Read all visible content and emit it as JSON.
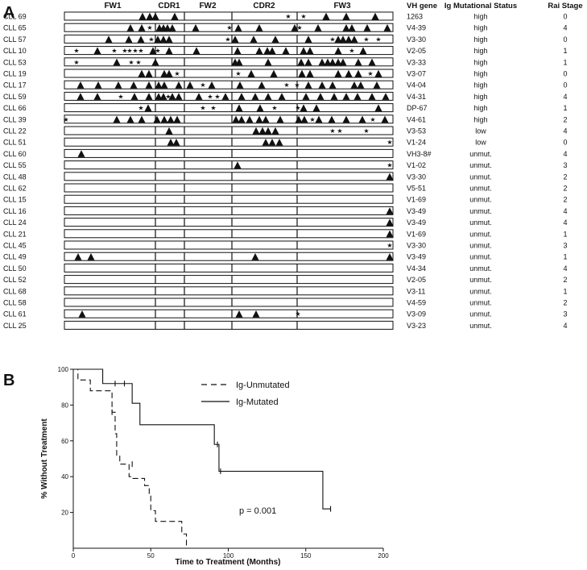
{
  "panel_a": {
    "letter": "A",
    "regions": [
      "FW1",
      "CDR1",
      "FW2",
      "CDR2",
      "FW3"
    ],
    "headers": {
      "vh_gene": "VH gene",
      "mutational_status": "Ig Mutational Status",
      "rai_stage": "Rai Stage"
    },
    "rows": [
      {
        "id": "CLL 69",
        "vh": "1263",
        "status": "high",
        "rai": "0"
      },
      {
        "id": "CLL 65",
        "vh": "V4-39",
        "status": "high",
        "rai": "4"
      },
      {
        "id": "CLL 57",
        "vh": "V3-30",
        "status": "high",
        "rai": "0"
      },
      {
        "id": "CLL 10",
        "vh": "V2-05",
        "status": "high",
        "rai": "1"
      },
      {
        "id": "CLL 53",
        "vh": "V3-33",
        "status": "high",
        "rai": "1"
      },
      {
        "id": "CLL 19",
        "vh": "V3-07",
        "status": "high",
        "rai": "0"
      },
      {
        "id": "CLL 17",
        "vh": "V4-04",
        "status": "high",
        "rai": "0"
      },
      {
        "id": "CLL 59",
        "vh": "V4-31",
        "status": "high",
        "rai": "4"
      },
      {
        "id": "CLL 66",
        "vh": "DP-67",
        "status": "high",
        "rai": "1"
      },
      {
        "id": "CLL 39",
        "vh": "V4-61",
        "status": "high",
        "rai": "2"
      },
      {
        "id": "CLL 22",
        "vh": "V3-53",
        "status": "low",
        "rai": "4"
      },
      {
        "id": "CLL 51",
        "vh": "V1-24",
        "status": "low",
        "rai": "0"
      },
      {
        "id": "CLL 60",
        "vh": "VH3-8#",
        "status": "unmut.",
        "rai": "4"
      },
      {
        "id": "CLL 55",
        "vh": "V1-02",
        "status": "unmut.",
        "rai": "3"
      },
      {
        "id": "CLL 48",
        "vh": "V3-30",
        "status": "unmut.",
        "rai": "2"
      },
      {
        "id": "CLL 62",
        "vh": "V5-51",
        "status": "unmut.",
        "rai": "2"
      },
      {
        "id": "CLL 15",
        "vh": "V1-69",
        "status": "unmut.",
        "rai": "2"
      },
      {
        "id": "CLL 16",
        "vh": "V3-49",
        "status": "unmut.",
        "rai": "4"
      },
      {
        "id": "CLL 24",
        "vh": "V3-49",
        "status": "unmut.",
        "rai": "4"
      },
      {
        "id": "CLL 21",
        "vh": "V1-69",
        "status": "unmut.",
        "rai": "1"
      },
      {
        "id": "CLL 45",
        "vh": "V3-30",
        "status": "unmut.",
        "rai": "3"
      },
      {
        "id": "CLL 49",
        "vh": "V3-49",
        "status": "unmut.",
        "rai": "1"
      },
      {
        "id": "CLL 50",
        "vh": "V4-34",
        "status": "unmut.",
        "rai": "4"
      },
      {
        "id": "CLL 52",
        "vh": "V2-05",
        "status": "unmut.",
        "rai": "2"
      },
      {
        "id": "CLL 68",
        "vh": "V3-11",
        "status": "unmut.",
        "rai": "1"
      },
      {
        "id": "CLL 58",
        "vh": "V4-59",
        "status": "unmut.",
        "rai": "2"
      },
      {
        "id": "CLL 61",
        "vh": "V3-09",
        "status": "unmut.",
        "rai": "3"
      },
      {
        "id": "CLL 25",
        "vh": "V3-23",
        "status": "unmut.",
        "rai": "4"
      }
    ]
  },
  "panel_b": {
    "letter": "B",
    "legend": {
      "unmutated": "Ig-Unmutated",
      "mutated": "Ig-Mutated"
    },
    "annotation": "p = 0.001"
  },
  "chart_data": {
    "type": "line",
    "xlabel": "Time to Treatment (Months)",
    "ylabel": "% Without Treatment",
    "xlim": [
      0,
      200
    ],
    "ylim": [
      0,
      100
    ],
    "xticks": [
      0,
      50,
      100,
      150,
      200
    ],
    "yticks": [
      20,
      40,
      60,
      80,
      100
    ],
    "step": true,
    "series": [
      {
        "name": "Ig-Unmutated",
        "style": "dashed",
        "x": [
          0,
          3,
          3,
          11,
          11,
          25,
          25,
          27,
          27,
          28,
          28,
          30,
          30,
          36,
          36,
          38,
          38,
          46,
          46,
          49,
          49,
          50,
          50,
          53,
          53,
          70,
          70,
          73,
          73
        ],
        "y": [
          100,
          100,
          94,
          94,
          88,
          88,
          76,
          76,
          64,
          64,
          52,
          52,
          47,
          47,
          40,
          40,
          39,
          39,
          35,
          35,
          30,
          30,
          21,
          21,
          15,
          15,
          8,
          8,
          0
        ],
        "censored": [
          [
            25,
            76
          ],
          [
            38,
            47
          ]
        ]
      },
      {
        "name": "Ig-Mutated",
        "style": "solid",
        "x": [
          0,
          19,
          19,
          38,
          38,
          43,
          43,
          91,
          91,
          94,
          94,
          161,
          161,
          166
        ],
        "y": [
          100,
          100,
          92,
          92,
          81,
          81,
          69,
          69,
          58,
          58,
          43,
          43,
          22,
          22
        ],
        "censored": [
          [
            27,
            92
          ],
          [
            33,
            92
          ],
          [
            93,
            58
          ],
          [
            95,
            43
          ],
          [
            166,
            22
          ]
        ]
      }
    ]
  }
}
